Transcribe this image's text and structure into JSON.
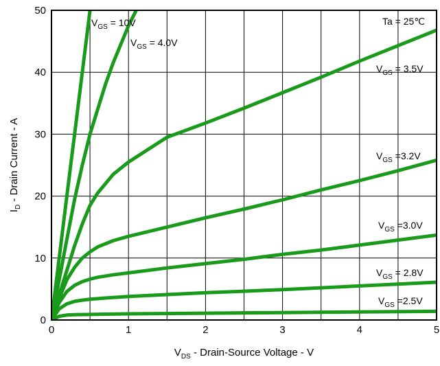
{
  "chart_data": {
    "type": "line",
    "xlabel": {
      "main": "V",
      "sub": "DS",
      "rest": " - Drain-Source Voltage - V"
    },
    "ylabel": {
      "main": "I",
      "sub": "D",
      "rest": " - Drain Current - A"
    },
    "xlim": [
      0,
      5
    ],
    "ylim": [
      0,
      50
    ],
    "xticks": [
      0,
      1,
      2,
      3,
      4,
      5
    ],
    "yticks": [
      0,
      10,
      20,
      30,
      40,
      50
    ],
    "xgrid": [
      0.5,
      1,
      1.5,
      2,
      2.5,
      3,
      3.5,
      4,
      4.5
    ],
    "ygrid": [
      10,
      20,
      30,
      40
    ],
    "grid": true,
    "annotation": "Ta = 25℃",
    "line_color": "#1a9a1a",
    "series": [
      {
        "name": "V_GS = 10V",
        "label_main": "V",
        "label_sub": "GS",
        "label_rest": " = 10V",
        "x": [
          0,
          0.05,
          0.1,
          0.15,
          0.2,
          0.25,
          0.3,
          0.35,
          0.4,
          0.45,
          0.5
        ],
        "y": [
          0,
          5,
          10,
          15,
          20,
          25,
          30,
          35,
          40,
          45,
          50
        ]
      },
      {
        "name": "V_GS = 4.0V",
        "label_main": "V",
        "label_sub": "GS",
        "label_rest": " = 4.0V",
        "x": [
          0,
          0.1,
          0.2,
          0.3,
          0.4,
          0.5,
          0.6,
          0.7,
          0.8,
          0.9,
          1.0,
          1.1
        ],
        "y": [
          0,
          6.5,
          13,
          19.5,
          25,
          30,
          34,
          38,
          41.5,
          44.5,
          47.5,
          50
        ]
      },
      {
        "name": "V_GS = 3.5V",
        "label_main": "V",
        "label_sub": "GS",
        "label_rest": " = 3.5V",
        "x": [
          0,
          0.1,
          0.2,
          0.3,
          0.4,
          0.5,
          0.6,
          0.8,
          1.0,
          1.5,
          2.0,
          2.5,
          3.0,
          3.5,
          4.0,
          4.5,
          5.0
        ],
        "y": [
          0,
          4,
          8,
          12,
          15.5,
          18.5,
          20.5,
          23.5,
          25.5,
          29.5,
          31.8,
          34.2,
          36.7,
          39.2,
          41.8,
          44.3,
          46.8
        ]
      },
      {
        "name": "V_GS =3.2V",
        "label_main": "V",
        "label_sub": "GS",
        "label_rest": " =3.2V",
        "x": [
          0,
          0.1,
          0.2,
          0.3,
          0.4,
          0.5,
          0.6,
          0.8,
          1.0,
          1.5,
          2.0,
          2.5,
          3.0,
          3.5,
          4.0,
          4.5,
          5.0
        ],
        "y": [
          0,
          3.5,
          6.5,
          8.5,
          10,
          11,
          11.8,
          12.8,
          13.5,
          15,
          16.5,
          17.9,
          19.4,
          21,
          22.5,
          24.1,
          25.8
        ]
      },
      {
        "name": "V_GS =3.0V",
        "label_main": "V",
        "label_sub": "GS",
        "label_rest": " =3.0V",
        "x": [
          0,
          0.1,
          0.2,
          0.3,
          0.4,
          0.5,
          0.6,
          0.8,
          1.0,
          1.5,
          2.0,
          2.5,
          3.0,
          3.5,
          4.0,
          4.5,
          5.0
        ],
        "y": [
          0,
          2.8,
          4.6,
          5.6,
          6.2,
          6.6,
          6.9,
          7.3,
          7.6,
          8.4,
          9.1,
          9.8,
          10.6,
          11.3,
          12.1,
          12.9,
          13.7
        ]
      },
      {
        "name": "V_GS = 2.8V",
        "label_main": "V",
        "label_sub": "GS",
        "label_rest": " = 2.8V",
        "x": [
          0,
          0.1,
          0.2,
          0.3,
          0.4,
          0.5,
          0.7,
          1.0,
          1.5,
          2.0,
          2.5,
          3.0,
          3.5,
          4.0,
          4.5,
          5.0
        ],
        "y": [
          0,
          1.8,
          2.6,
          3.0,
          3.2,
          3.35,
          3.55,
          3.8,
          4.1,
          4.4,
          4.65,
          4.9,
          5.2,
          5.5,
          5.8,
          6.1
        ]
      },
      {
        "name": "V_GS =2.5V",
        "label_main": "V",
        "label_sub": "GS",
        "label_rest": " =2.5V",
        "x": [
          0,
          0.1,
          0.2,
          0.3,
          0.5,
          1.0,
          2.0,
          3.0,
          4.0,
          5.0
        ],
        "y": [
          0,
          0.6,
          0.8,
          0.85,
          0.9,
          1.0,
          1.1,
          1.2,
          1.3,
          1.4
        ]
      }
    ]
  }
}
